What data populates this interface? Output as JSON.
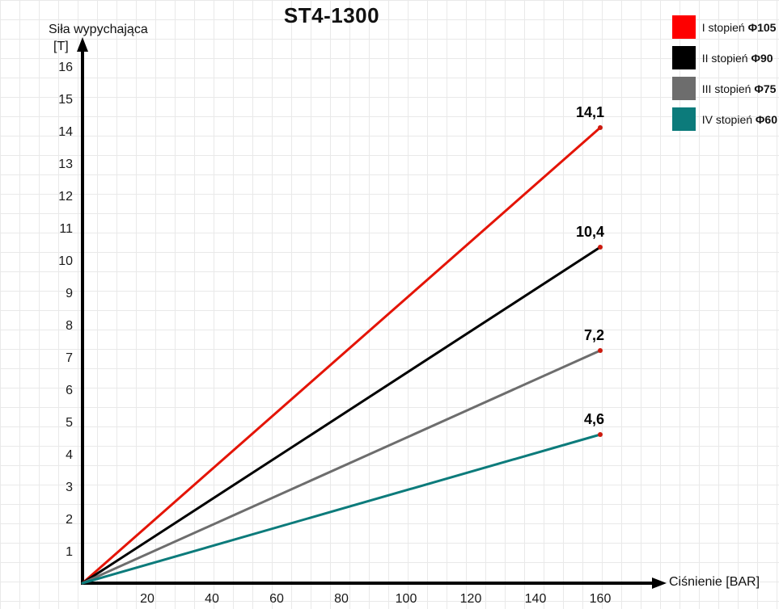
{
  "title": "ST4-1300",
  "axes": {
    "y_label_line1": "Siła wypychająca",
    "y_label_line2": "[T]",
    "x_label": "Ciśnienie [BAR]"
  },
  "legend": {
    "items": [
      {
        "prefix": "I stopień ",
        "phi": "Φ105",
        "color": "#fe0000"
      },
      {
        "prefix": "II stopień ",
        "phi": "Φ90",
        "color": "#000000"
      },
      {
        "prefix": "III stopień ",
        "phi": "Φ75",
        "color": "#6d6d6d"
      },
      {
        "prefix": "IV stopień ",
        "phi": "Φ60",
        "color": "#0c7b7b"
      }
    ]
  },
  "chart_data": {
    "type": "line",
    "title": "ST4-1300",
    "xlabel": "Ciśnienie [BAR]",
    "ylabel": "Siła wypychająca [T]",
    "x": [
      0,
      160
    ],
    "x_ticks": [
      20,
      40,
      60,
      80,
      100,
      120,
      140,
      160
    ],
    "y_ticks": [
      1,
      2,
      3,
      4,
      5,
      6,
      7,
      8,
      9,
      10,
      11,
      12,
      13,
      14,
      15,
      16
    ],
    "xlim": [
      0,
      160
    ],
    "ylim": [
      0,
      16
    ],
    "grid": true,
    "legend_position": "top-right",
    "endpoint_marker_color": "#cc1a0e",
    "series": [
      {
        "name": "I stopień Φ105",
        "color": "#e41406",
        "values": [
          0,
          14.1
        ],
        "end_label": "14,1"
      },
      {
        "name": "II stopień Φ90",
        "color": "#000000",
        "values": [
          0,
          10.4
        ],
        "end_label": "10,4"
      },
      {
        "name": "III stopień Φ75",
        "color": "#6d6d6d",
        "values": [
          0,
          7.2
        ],
        "end_label": "7,2"
      },
      {
        "name": "IV stopień Φ60",
        "color": "#0c7b7b",
        "values": [
          0,
          4.6
        ],
        "end_label": "4,6"
      }
    ]
  }
}
